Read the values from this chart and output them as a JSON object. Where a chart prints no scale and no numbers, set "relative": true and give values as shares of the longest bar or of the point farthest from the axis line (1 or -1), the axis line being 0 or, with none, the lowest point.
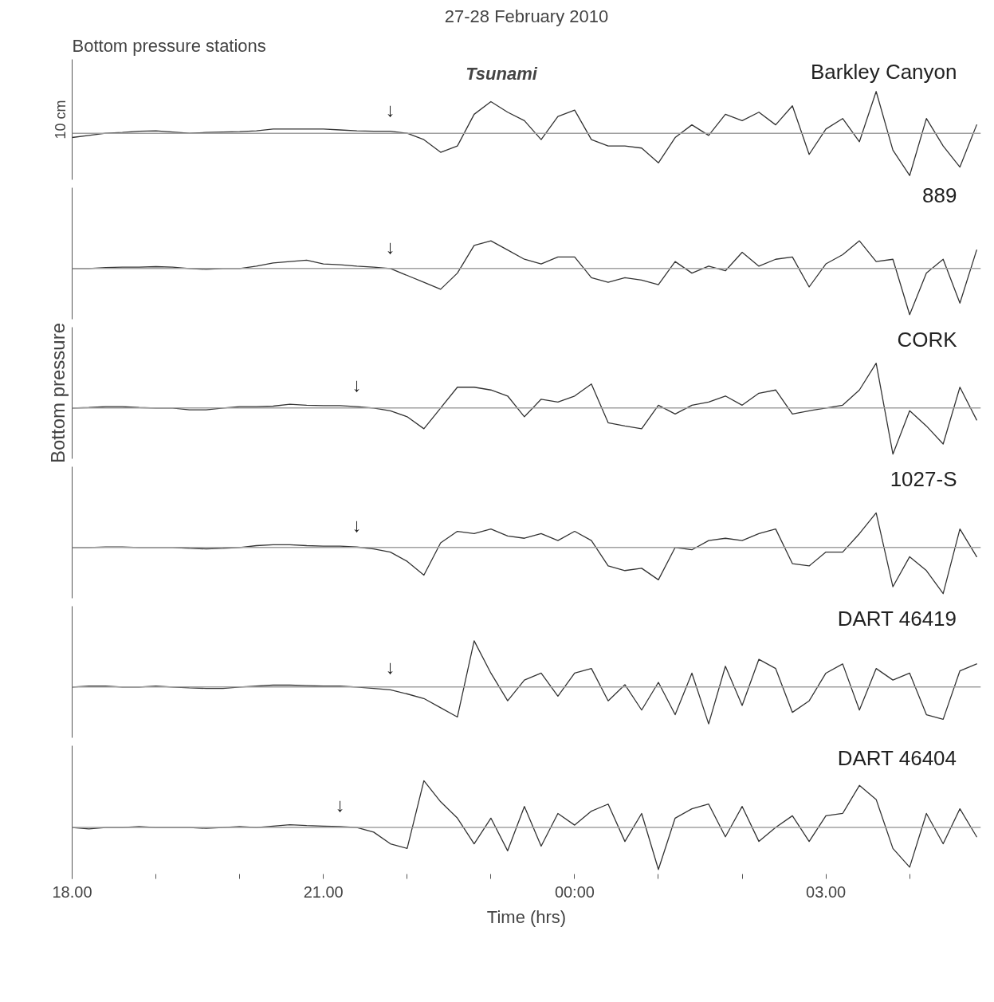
{
  "chart_data": [
    {
      "type": "line",
      "title": "27-28 February 2010",
      "subtitle": "Bottom pressure stations",
      "relative": true,
      "tick_labels": false,
      "xlim": [
        "2010-02-27T18:00",
        "2010-02-28T04:51"
      ],
      "x": [
        "2010-02-27T18:00",
        "2010-02-27T18:12",
        "2010-02-27T18:24",
        "2010-02-27T18:36",
        "2010-02-27T18:48",
        "2010-02-27T19:00",
        "2010-02-27T19:12",
        "2010-02-27T19:24",
        "2010-02-27T19:36",
        "2010-02-27T19:48",
        "2010-02-27T20:00",
        "2010-02-27T20:12",
        "2010-02-27T20:24",
        "2010-02-27T20:36",
        "2010-02-27T20:48",
        "2010-02-27T21:00",
        "2010-02-27T21:12",
        "2010-02-27T21:24",
        "2010-02-27T21:36",
        "2010-02-27T21:48",
        "2010-02-27T22:00",
        "2010-02-27T22:12",
        "2010-02-27T22:24",
        "2010-02-27T22:36",
        "2010-02-27T22:48",
        "2010-02-27T23:00",
        "2010-02-27T23:12",
        "2010-02-27T23:24",
        "2010-02-27T23:36",
        "2010-02-27T23:48",
        "2010-02-28T00:00",
        "2010-02-28T00:12",
        "2010-02-28T00:24",
        "2010-02-28T00:36",
        "2010-02-28T00:48",
        "2010-02-28T01:00",
        "2010-02-28T01:12",
        "2010-02-28T01:24",
        "2010-02-28T01:36",
        "2010-02-28T01:48",
        "2010-02-28T02:00",
        "2010-02-28T02:12",
        "2010-02-28T02:24",
        "2010-02-28T02:36",
        "2010-02-28T02:48",
        "2010-02-28T03:00",
        "2010-02-28T03:12",
        "2010-02-28T03:24",
        "2010-02-28T03:36",
        "2010-02-28T03:48",
        "2010-02-28T04:00",
        "2010-02-28T04:12",
        "2010-02-28T04:24",
        "2010-02-28T04:36",
        "2010-02-28T04:48"
      ],
      "series": [
        {
          "name": "Barkley Canyon",
          "color": "#333333",
          "values": [
            -0.1,
            -0.05,
            0,
            0.02,
            0.05,
            0.06,
            0.03,
            0,
            0.02,
            0.03,
            0.04,
            0.06,
            0.1,
            0.1,
            0.1,
            0.1,
            0.08,
            0.06,
            0.05,
            0.05,
            0,
            -0.15,
            -0.45,
            -0.3,
            0.45,
            0.75,
            0.5,
            0.3,
            -0.15,
            0.4,
            0.55,
            -0.15,
            -0.3,
            -0.3,
            -0.35,
            -0.7,
            -0.1,
            0.2,
            -0.05,
            0.45,
            0.3,
            0.5,
            0.2,
            0.65,
            -0.5,
            0.1,
            0.35,
            -0.2,
            0.99,
            -0.4,
            -1,
            0.35,
            -0.3,
            -0.8,
            0.2
          ]
        }
      ],
      "ref_lines": [
        {
          "axis": "y",
          "value": 0,
          "color": "#a0a0a0"
        }
      ],
      "annotations": [
        "Tsunami",
        "10 cm",
        {
          "text": "↓",
          "x": "2010-02-27T21:48",
          "y": 0.05
        }
      ]
    },
    {
      "type": "line",
      "relative": true,
      "tick_labels": false,
      "xlim": [
        "2010-02-27T18:00",
        "2010-02-28T04:51"
      ],
      "x": [
        "2010-02-27T18:00",
        "2010-02-27T18:12",
        "2010-02-27T18:24",
        "2010-02-27T18:36",
        "2010-02-27T18:48",
        "2010-02-27T19:00",
        "2010-02-27T19:12",
        "2010-02-27T19:24",
        "2010-02-27T19:36",
        "2010-02-27T19:48",
        "2010-02-27T20:00",
        "2010-02-27T20:12",
        "2010-02-27T20:24",
        "2010-02-27T20:36",
        "2010-02-27T20:48",
        "2010-02-27T21:00",
        "2010-02-27T21:12",
        "2010-02-27T21:24",
        "2010-02-27T21:36",
        "2010-02-27T21:48",
        "2010-02-27T22:00",
        "2010-02-27T22:12",
        "2010-02-27T22:24",
        "2010-02-27T22:36",
        "2010-02-27T22:48",
        "2010-02-27T23:00",
        "2010-02-27T23:12",
        "2010-02-27T23:24",
        "2010-02-27T23:36",
        "2010-02-27T23:48",
        "2010-02-28T00:00",
        "2010-02-28T00:12",
        "2010-02-28T00:24",
        "2010-02-28T00:36",
        "2010-02-28T00:48",
        "2010-02-28T01:00",
        "2010-02-28T01:12",
        "2010-02-28T01:24",
        "2010-02-28T01:36",
        "2010-02-28T01:48",
        "2010-02-28T02:00",
        "2010-02-28T02:12",
        "2010-02-28T02:24",
        "2010-02-28T02:36",
        "2010-02-28T02:48",
        "2010-02-28T03:00",
        "2010-02-28T03:12",
        "2010-02-28T03:24",
        "2010-02-28T03:36",
        "2010-02-28T03:48",
        "2010-02-28T04:00",
        "2010-02-28T04:12",
        "2010-02-28T04:24",
        "2010-02-28T04:36",
        "2010-02-28T04:48"
      ],
      "series": [
        {
          "name": "889",
          "color": "#333333",
          "values": [
            0,
            0,
            0.02,
            0.03,
            0.03,
            0.04,
            0.03,
            0,
            -0.02,
            0,
            0,
            0.05,
            0.12,
            0.15,
            0.18,
            0.1,
            0.08,
            0.05,
            0.03,
            0,
            -0.15,
            -0.3,
            -0.45,
            -0.1,
            0.5,
            0.6,
            0.4,
            0.2,
            0.1,
            0.25,
            0.25,
            -0.2,
            -0.3,
            -0.2,
            -0.25,
            -0.35,
            0.15,
            -0.1,
            0.05,
            -0.05,
            0.35,
            0.05,
            0.2,
            0.25,
            -0.4,
            0.1,
            0.3,
            0.6,
            0.15,
            0.2,
            -1,
            -0.1,
            0.2,
            -0.75,
            0.4
          ]
        }
      ],
      "ref_lines": [
        {
          "axis": "y",
          "value": 0,
          "color": "#a0a0a0"
        }
      ],
      "annotations": [
        {
          "text": "↓",
          "x": "2010-02-27T21:48",
          "y": 0
        }
      ]
    },
    {
      "type": "line",
      "ylabel": "Bottom pressure",
      "relative": true,
      "tick_labels": false,
      "xlim": [
        "2010-02-27T18:00",
        "2010-02-28T04:51"
      ],
      "x": [
        "2010-02-27T18:00",
        "2010-02-27T18:12",
        "2010-02-27T18:24",
        "2010-02-27T18:36",
        "2010-02-27T18:48",
        "2010-02-27T19:00",
        "2010-02-27T19:12",
        "2010-02-27T19:24",
        "2010-02-27T19:36",
        "2010-02-27T19:48",
        "2010-02-27T20:00",
        "2010-02-27T20:12",
        "2010-02-27T20:24",
        "2010-02-27T20:36",
        "2010-02-27T20:48",
        "2010-02-27T21:00",
        "2010-02-27T21:12",
        "2010-02-27T21:24",
        "2010-02-27T21:36",
        "2010-02-27T21:48",
        "2010-02-27T22:00",
        "2010-02-27T22:12",
        "2010-02-27T22:24",
        "2010-02-27T22:36",
        "2010-02-27T22:48",
        "2010-02-27T23:00",
        "2010-02-27T23:12",
        "2010-02-27T23:24",
        "2010-02-27T23:36",
        "2010-02-27T23:48",
        "2010-02-28T00:00",
        "2010-02-28T00:12",
        "2010-02-28T00:24",
        "2010-02-28T00:36",
        "2010-02-28T00:48",
        "2010-02-28T01:00",
        "2010-02-28T01:12",
        "2010-02-28T01:24",
        "2010-02-28T01:36",
        "2010-02-28T01:48",
        "2010-02-28T02:00",
        "2010-02-28T02:12",
        "2010-02-28T02:24",
        "2010-02-28T02:36",
        "2010-02-28T02:48",
        "2010-02-28T03:00",
        "2010-02-28T03:12",
        "2010-02-28T03:24",
        "2010-02-28T03:36",
        "2010-02-28T03:48",
        "2010-02-28T04:00",
        "2010-02-28T04:12",
        "2010-02-28T04:24",
        "2010-02-28T04:36",
        "2010-02-28T04:48"
      ],
      "series": [
        {
          "name": "CORK",
          "color": "#333333",
          "values": [
            0,
            0.01,
            0.03,
            0.03,
            0.01,
            0,
            0,
            -0.04,
            -0.04,
            0,
            0.03,
            0.03,
            0.04,
            0.08,
            0.06,
            0.05,
            0.05,
            0.03,
            0,
            -0.06,
            -0.19,
            -0.45,
            0,
            0.45,
            0.45,
            0.39,
            0.26,
            -0.19,
            0.19,
            0.13,
            0.26,
            0.52,
            -0.32,
            -0.39,
            -0.45,
            0.06,
            -0.13,
            0.06,
            0.13,
            0.26,
            0.06,
            0.32,
            0.39,
            -0.13,
            -0.06,
            0,
            0.06,
            0.39,
            0.97,
            -1,
            -0.06,
            -0.39,
            -0.78,
            0.45,
            -0.26
          ]
        }
      ],
      "ref_lines": [
        {
          "axis": "y",
          "value": 0,
          "color": "#a0a0a0"
        }
      ],
      "annotations": [
        {
          "text": "↓",
          "x": "2010-02-27T21:24",
          "y": 0.03
        }
      ]
    },
    {
      "type": "line",
      "relative": true,
      "tick_labels": false,
      "xlim": [
        "2010-02-27T18:00",
        "2010-02-28T04:51"
      ],
      "x": [
        "2010-02-27T18:00",
        "2010-02-27T18:12",
        "2010-02-27T18:24",
        "2010-02-27T18:36",
        "2010-02-27T18:48",
        "2010-02-27T19:00",
        "2010-02-27T19:12",
        "2010-02-27T19:24",
        "2010-02-27T19:36",
        "2010-02-27T19:48",
        "2010-02-27T20:00",
        "2010-02-27T20:12",
        "2010-02-27T20:24",
        "2010-02-27T20:36",
        "2010-02-27T20:48",
        "2010-02-27T21:00",
        "2010-02-27T21:12",
        "2010-02-27T21:24",
        "2010-02-27T21:36",
        "2010-02-27T21:48",
        "2010-02-27T22:00",
        "2010-02-27T22:12",
        "2010-02-27T22:24",
        "2010-02-27T22:36",
        "2010-02-27T22:48",
        "2010-02-27T23:00",
        "2010-02-27T23:12",
        "2010-02-27T23:24",
        "2010-02-27T23:36",
        "2010-02-27T23:48",
        "2010-02-28T00:00",
        "2010-02-28T00:12",
        "2010-02-28T00:24",
        "2010-02-28T00:36",
        "2010-02-28T00:48",
        "2010-02-28T01:00",
        "2010-02-28T01:12",
        "2010-02-28T01:24",
        "2010-02-28T01:36",
        "2010-02-28T01:48",
        "2010-02-28T02:00",
        "2010-02-28T02:12",
        "2010-02-28T02:24",
        "2010-02-28T02:36",
        "2010-02-28T02:48",
        "2010-02-28T03:00",
        "2010-02-28T03:12",
        "2010-02-28T03:24",
        "2010-02-28T03:36",
        "2010-02-28T03:48",
        "2010-02-28T04:00",
        "2010-02-28T04:12",
        "2010-02-28T04:24",
        "2010-02-28T04:36",
        "2010-02-28T04:48"
      ],
      "series": [
        {
          "name": "1027-S",
          "color": "#333333",
          "values": [
            0,
            0,
            0.01,
            0.01,
            0,
            0,
            0,
            -0.02,
            -0.03,
            -0.02,
            0,
            0.04,
            0.06,
            0.06,
            0.04,
            0.03,
            0.03,
            0.01,
            -0.03,
            -0.1,
            -0.3,
            -0.6,
            0.1,
            0.35,
            0.3,
            0.4,
            0.25,
            0.2,
            0.3,
            0.15,
            0.35,
            0.15,
            -0.4,
            -0.5,
            -0.45,
            -0.7,
            0,
            -0.05,
            0.15,
            0.2,
            0.15,
            0.3,
            0.4,
            -0.35,
            -0.4,
            -0.1,
            -0.1,
            0.3,
            0.75,
            -0.85,
            -0.2,
            -0.5,
            -1,
            0.4,
            -0.2
          ]
        }
      ],
      "ref_lines": [
        {
          "axis": "y",
          "value": 0,
          "color": "#a0a0a0"
        }
      ],
      "annotations": [
        {
          "text": "↓",
          "x": "2010-02-27T21:24",
          "y": 0.01
        }
      ]
    },
    {
      "type": "line",
      "relative": true,
      "tick_labels": false,
      "xlim": [
        "2010-02-27T18:00",
        "2010-02-28T04:51"
      ],
      "x": [
        "2010-02-27T18:00",
        "2010-02-27T18:12",
        "2010-02-27T18:24",
        "2010-02-27T18:36",
        "2010-02-27T18:48",
        "2010-02-27T19:00",
        "2010-02-27T19:12",
        "2010-02-27T19:24",
        "2010-02-27T19:36",
        "2010-02-27T19:48",
        "2010-02-27T20:00",
        "2010-02-27T20:12",
        "2010-02-27T20:24",
        "2010-02-27T20:36",
        "2010-02-27T20:48",
        "2010-02-27T21:00",
        "2010-02-27T21:12",
        "2010-02-27T21:24",
        "2010-02-27T21:36",
        "2010-02-27T21:48",
        "2010-02-27T22:00",
        "2010-02-27T22:12",
        "2010-02-27T22:24",
        "2010-02-27T22:36",
        "2010-02-27T22:48",
        "2010-02-27T23:00",
        "2010-02-27T23:12",
        "2010-02-27T23:24",
        "2010-02-27T23:36",
        "2010-02-27T23:48",
        "2010-02-28T00:00",
        "2010-02-28T00:12",
        "2010-02-28T00:24",
        "2010-02-28T00:36",
        "2010-02-28T00:48",
        "2010-02-28T01:00",
        "2010-02-28T01:12",
        "2010-02-28T01:24",
        "2010-02-28T01:36",
        "2010-02-28T01:48",
        "2010-02-28T02:00",
        "2010-02-28T02:12",
        "2010-02-28T02:24",
        "2010-02-28T02:36",
        "2010-02-28T02:48",
        "2010-02-28T03:00",
        "2010-02-28T03:12",
        "2010-02-28T03:24",
        "2010-02-28T03:36",
        "2010-02-28T03:48",
        "2010-02-28T04:00",
        "2010-02-28T04:12",
        "2010-02-28T04:24",
        "2010-02-28T04:36",
        "2010-02-28T04:48"
      ],
      "series": [
        {
          "name": "DART 46419",
          "color": "#333333",
          "values": [
            0,
            0.02,
            0.02,
            0,
            0,
            0.02,
            0,
            -0.02,
            -0.03,
            -0.03,
            0,
            0.02,
            0.04,
            0.04,
            0.03,
            0.02,
            0.02,
            0,
            -0.03,
            -0.06,
            -0.15,
            -0.25,
            -0.45,
            -0.65,
            1,
            0.3,
            -0.3,
            0.15,
            0.3,
            -0.2,
            0.3,
            0.4,
            -0.3,
            0.05,
            -0.5,
            0.1,
            -0.6,
            0.3,
            -0.8,
            0.45,
            -0.4,
            0.6,
            0.4,
            -0.55,
            -0.3,
            0.3,
            0.5,
            -0.5,
            0.4,
            0.15,
            0.3,
            -0.6,
            -0.7,
            0.35,
            0.5
          ]
        }
      ],
      "ref_lines": [
        {
          "axis": "y",
          "value": 0,
          "color": "#a0a0a0"
        }
      ],
      "annotations": [
        {
          "text": "↓",
          "x": "2010-02-27T21:48",
          "y": -0.03
        }
      ]
    },
    {
      "type": "line",
      "xlabel": "Time (hrs)",
      "relative": true,
      "tick_labels": "x",
      "xlim": [
        "2010-02-27T18:00",
        "2010-02-28T04:51"
      ],
      "xticks": [
        {
          "value": "2010-02-27T18:00",
          "label": "18.00"
        },
        {
          "value": "2010-02-27T19:00",
          "label": null
        },
        {
          "value": "2010-02-27T20:00",
          "label": null
        },
        {
          "value": "2010-02-27T21:00",
          "label": "21.00"
        },
        {
          "value": "2010-02-27T22:00",
          "label": null
        },
        {
          "value": "2010-02-27T23:00",
          "label": null
        },
        {
          "value": "2010-02-28T00:00",
          "label": "00:00"
        },
        {
          "value": "2010-02-28T01:00",
          "label": null
        },
        {
          "value": "2010-02-28T02:00",
          "label": null
        },
        {
          "value": "2010-02-28T03:00",
          "label": "03.00"
        },
        {
          "value": "2010-02-28T04:00",
          "label": null
        }
      ],
      "x": [
        "2010-02-27T18:00",
        "2010-02-27T18:12",
        "2010-02-27T18:24",
        "2010-02-27T18:36",
        "2010-02-27T18:48",
        "2010-02-27T19:00",
        "2010-02-27T19:12",
        "2010-02-27T19:24",
        "2010-02-27T19:36",
        "2010-02-27T19:48",
        "2010-02-27T20:00",
        "2010-02-27T20:12",
        "2010-02-27T20:24",
        "2010-02-27T20:36",
        "2010-02-27T20:48",
        "2010-02-27T21:00",
        "2010-02-27T21:12",
        "2010-02-27T21:24",
        "2010-02-27T21:36",
        "2010-02-27T21:48",
        "2010-02-27T22:00",
        "2010-02-27T22:12",
        "2010-02-27T22:24",
        "2010-02-27T22:36",
        "2010-02-27T22:48",
        "2010-02-27T23:00",
        "2010-02-27T23:12",
        "2010-02-27T23:24",
        "2010-02-27T23:36",
        "2010-02-27T23:48",
        "2010-02-28T00:00",
        "2010-02-28T00:12",
        "2010-02-28T00:24",
        "2010-02-28T00:36",
        "2010-02-28T00:48",
        "2010-02-28T01:00",
        "2010-02-28T01:12",
        "2010-02-28T01:24",
        "2010-02-28T01:36",
        "2010-02-28T01:48",
        "2010-02-28T02:00",
        "2010-02-28T02:12",
        "2010-02-28T02:24",
        "2010-02-28T02:36",
        "2010-02-28T02:48",
        "2010-02-28T03:00",
        "2010-02-28T03:12",
        "2010-02-28T03:24",
        "2010-02-28T03:36",
        "2010-02-28T03:48",
        "2010-02-28T04:00",
        "2010-02-28T04:12",
        "2010-02-28T04:24",
        "2010-02-28T04:36",
        "2010-02-28T04:48"
      ],
      "series": [
        {
          "name": "DART 46404",
          "color": "#333333",
          "values": [
            0,
            -0.03,
            0,
            0,
            0.02,
            0,
            0,
            0,
            -0.02,
            0,
            0.02,
            0,
            0.03,
            0.06,
            0.04,
            0.03,
            0.02,
            0,
            -0.1,
            -0.35,
            -0.45,
            1,
            0.55,
            0.2,
            -0.35,
            0.2,
            -0.5,
            0.45,
            -0.4,
            0.3,
            0.05,
            0.35,
            0.5,
            -0.3,
            0.3,
            -0.9,
            0.2,
            0.4,
            0.5,
            -0.2,
            0.45,
            -0.3,
            0,
            0.25,
            -0.3,
            0.25,
            0.3,
            0.9,
            0.6,
            -0.45,
            -0.85,
            0.3,
            -0.35,
            0.4,
            -0.2
          ]
        }
      ],
      "ref_lines": [
        {
          "axis": "y",
          "value": 0,
          "color": "#a0a0a0"
        }
      ],
      "annotations": [
        {
          "text": "↓",
          "x": "2010-02-27T21:12",
          "y": 0.02
        }
      ]
    }
  ]
}
